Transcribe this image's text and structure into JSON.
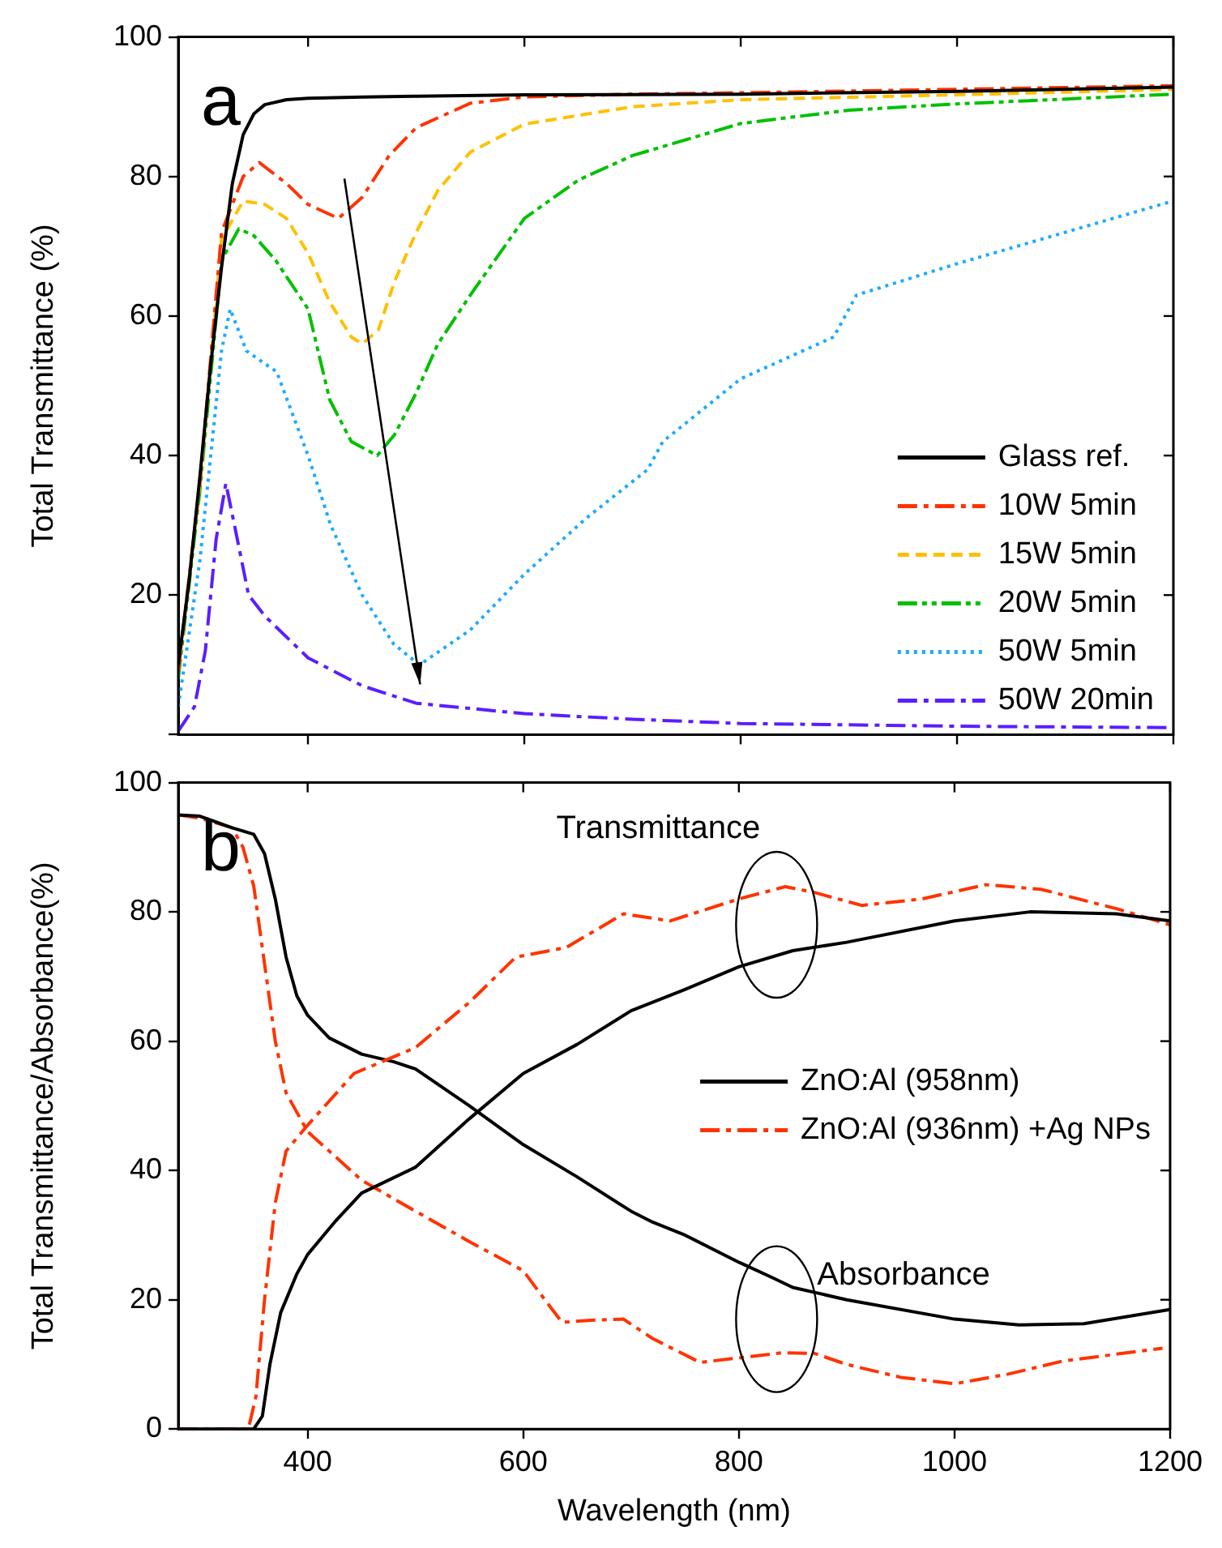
{
  "chart_data": [
    {
      "type": "line",
      "ylabel": "Total Transmittance (%)",
      "xlim": [
        280,
        1200
      ],
      "xticks": [
        400,
        600,
        800,
        1000,
        1200
      ],
      "ylim": [
        0,
        100
      ],
      "yticks": [
        {
          "value": 0,
          "label": null
        },
        20,
        40,
        60,
        80,
        100
      ],
      "tick_labels": "y",
      "legend": "bottom right",
      "annotations": [
        "a"
      ],
      "series": [
        {
          "name": "Glass ref.",
          "color": "#000000",
          "line_style": "solid",
          "x": [
            280,
            290,
            300,
            310,
            320,
            330,
            340,
            350,
            360,
            380,
            400,
            450,
            500,
            600,
            800,
            1000,
            1200
          ],
          "values": [
            10,
            22,
            37,
            53,
            67,
            79,
            86,
            89,
            90.3,
            91,
            91.2,
            91.4,
            91.5,
            91.7,
            91.8,
            92.2,
            92.8
          ]
        },
        {
          "name": "10W 5min",
          "color": "#ff3300",
          "line_style": "dashdot",
          "x": [
            280,
            300,
            320,
            340,
            355,
            380,
            400,
            428,
            450,
            475,
            500,
            550,
            600,
            700,
            800,
            1000,
            1200
          ],
          "values": [
            9,
            36,
            72,
            80,
            82,
            79,
            76,
            74,
            77,
            83,
            87,
            90.5,
            91.4,
            91.8,
            92,
            92.5,
            93
          ]
        },
        {
          "name": "15W 5min",
          "color": "#ffc000",
          "line_style": "dashed",
          "x": [
            280,
            300,
            320,
            340,
            360,
            380,
            400,
            420,
            440,
            450,
            465,
            480,
            500,
            520,
            550,
            600,
            700,
            800,
            1000,
            1200
          ],
          "values": [
            9,
            36,
            71,
            76.5,
            76,
            74,
            69,
            62,
            57,
            56,
            58,
            65,
            72,
            78,
            83.5,
            87.5,
            90,
            91,
            91.7,
            92.5
          ]
        },
        {
          "name": "20W 5min",
          "color": "#00c000",
          "line_style": "dashdotdot",
          "x": [
            280,
            300,
            320,
            336,
            350,
            370,
            400,
            420,
            440,
            464,
            480,
            500,
            520,
            550,
            600,
            650,
            700,
            800,
            900,
            1000,
            1200
          ],
          "values": [
            8,
            35,
            68,
            72.5,
            71.5,
            68,
            61,
            48,
            42,
            40,
            43,
            49,
            56,
            63,
            74,
            79.5,
            83,
            87.6,
            89.5,
            90.4,
            91.8
          ]
        },
        {
          "name": "50W 5min",
          "color": "#1eaaff",
          "line_style": "dotted",
          "x": [
            280,
            300,
            320,
            328,
            343,
            371,
            400,
            421,
            450,
            479,
            503,
            550,
            600,
            657,
            714,
            728,
            800,
            886,
            907,
            1000,
            1100,
            1200
          ],
          "values": [
            4,
            25,
            55,
            61,
            55,
            52,
            40,
            30,
            20,
            13,
            10,
            15,
            23,
            31,
            38,
            42,
            51,
            57,
            63,
            67.5,
            72,
            76.5
          ]
        },
        {
          "name": "50W 20min",
          "color": "#5a1eff",
          "line_style": "dashdot",
          "x": [
            280,
            295,
            305,
            315,
            324,
            332,
            345,
            360,
            400,
            450,
            500,
            600,
            700,
            800,
            1000,
            1200
          ],
          "values": [
            0.5,
            4,
            12,
            28,
            36,
            30,
            20,
            17,
            11,
            7,
            4.5,
            3,
            2.2,
            1.6,
            1.2,
            1
          ]
        }
      ]
    },
    {
      "type": "line",
      "xlabel": "Wavelength (nm)",
      "ylabel": "Total Transmittance/Absorbance(%)",
      "xlim": [
        280,
        1200
      ],
      "xticks": [
        400,
        600,
        800,
        1000,
        1200
      ],
      "ylim": [
        0,
        100
      ],
      "yticks": [
        0,
        20,
        40,
        60,
        80,
        100
      ],
      "legend": "right",
      "annotations": [
        "b",
        "Transmittance",
        "Absorbance"
      ],
      "series": [
        {
          "color": "#000000",
          "line_style": "solid",
          "x": [
            280,
            350,
            358,
            365,
            375,
            390,
            400,
            425,
            450,
            500,
            550,
            600,
            650,
            700,
            750,
            800,
            850,
            900,
            1000,
            1070,
            1150,
            1200
          ],
          "values": [
            0,
            0,
            2,
            10,
            18,
            24,
            27,
            32,
            36.5,
            40.5,
            48,
            55,
            59.5,
            64.7,
            68,
            71.5,
            74,
            75.3,
            78.6,
            80,
            79.7,
            78.6
          ]
        },
        {
          "color": "#ff3300",
          "line_style": "dashdot",
          "x": [
            280,
            345,
            352,
            360,
            370,
            380,
            400,
            443,
            500,
            550,
            593,
            640,
            693,
            736,
            800,
            843,
            870,
            914,
            970,
            1029,
            1080,
            1150,
            1200
          ],
          "values": [
            0,
            0,
            5,
            20,
            35,
            43,
            47,
            55,
            59,
            66,
            73,
            74.5,
            79.7,
            78.6,
            82,
            83.9,
            83,
            81,
            82,
            84.2,
            83.5,
            80.5,
            78
          ]
        },
        {
          "name": "ZnO:Al (958nm)",
          "color": "#000000",
          "line_style": "solid",
          "x": [
            280,
            300,
            330,
            350,
            360,
            370,
            380,
            390,
            400,
            420,
            450,
            480,
            500,
            550,
            600,
            650,
            700,
            720,
            750,
            800,
            830,
            850,
            900,
            1000,
            1060,
            1120,
            1200
          ],
          "values": [
            95,
            94.8,
            93,
            92,
            89,
            82,
            73,
            67,
            64,
            60.5,
            58,
            56.8,
            55.7,
            50,
            44,
            39,
            33.7,
            32,
            30,
            25.8,
            23.5,
            21.9,
            20,
            17,
            16.1,
            16.3,
            18.5
          ]
        },
        {
          "name": "ZnO:Al (936nm) +Ag NPs",
          "color": "#ff3300",
          "line_style": "dashdot",
          "x": [
            280,
            300,
            330,
            340,
            350,
            360,
            370,
            380,
            400,
            450,
            500,
            550,
            600,
            620,
            636,
            660,
            693,
            720,
            764,
            800,
            840,
            870,
            900,
            950,
            1000,
            1050,
            1100,
            1193
          ],
          "values": [
            95,
            94.5,
            93,
            90,
            84,
            72,
            60,
            52,
            46,
            38.5,
            33.7,
            29,
            24.5,
            20,
            16.5,
            16.8,
            17,
            14,
            10.3,
            11,
            11.8,
            11.7,
            10,
            8,
            7,
            8.5,
            10.5,
            12.5
          ]
        }
      ]
    }
  ]
}
